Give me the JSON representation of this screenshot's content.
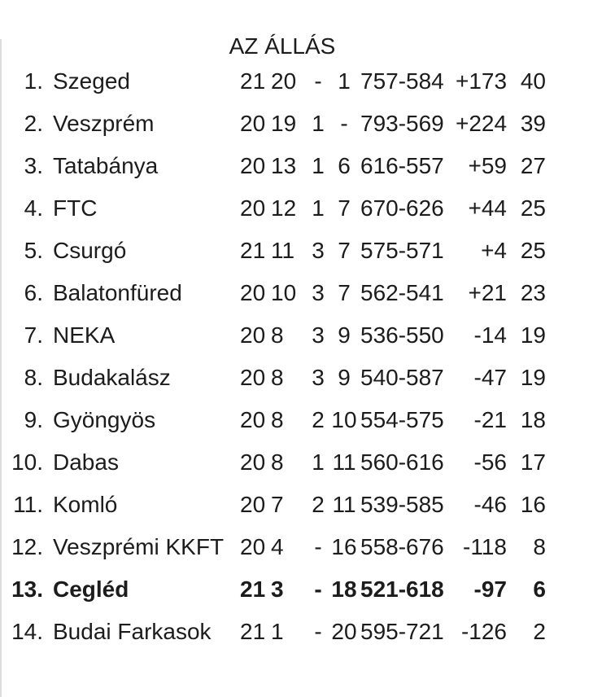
{
  "title": "AZ ÁLLÁS",
  "colors": {
    "text": "#1c1c1c",
    "background": "#ffffff",
    "left_border_line": "#dcdcdc"
  },
  "standings": {
    "columns": [
      "rank",
      "team",
      "played",
      "wins",
      "draws",
      "losses",
      "goals",
      "diff",
      "points"
    ],
    "rows": [
      {
        "rank": "1.",
        "team": "Szeged",
        "played": "21",
        "wins": "20",
        "draws": "-",
        "losses": "1",
        "goals": "757-584",
        "diff": "+173",
        "points": "40",
        "bold": false
      },
      {
        "rank": "2.",
        "team": "Veszprém",
        "played": "20",
        "wins": "19",
        "draws": "1",
        "losses": "-",
        "goals": "793-569",
        "diff": "+224",
        "points": "39",
        "bold": false
      },
      {
        "rank": "3.",
        "team": "Tatabánya",
        "played": "20",
        "wins": "13",
        "draws": "1",
        "losses": "6",
        "goals": "616-557",
        "diff": "+59",
        "points": "27",
        "bold": false
      },
      {
        "rank": "4.",
        "team": "FTC",
        "played": "20",
        "wins": "12",
        "draws": "1",
        "losses": "7",
        "goals": "670-626",
        "diff": "+44",
        "points": "25",
        "bold": false
      },
      {
        "rank": "5.",
        "team": "Csurgó",
        "played": "21",
        "wins": "11",
        "draws": "3",
        "losses": "7",
        "goals": "575-571",
        "diff": "+4",
        "points": "25",
        "bold": false
      },
      {
        "rank": "6.",
        "team": "Balatonfüred",
        "played": "20",
        "wins": "10",
        "draws": "3",
        "losses": "7",
        "goals": "562-541",
        "diff": "+21",
        "points": "23",
        "bold": false
      },
      {
        "rank": "7.",
        "team": "NEKA",
        "played": "20",
        "wins": "8",
        "draws": "3",
        "losses": "9",
        "goals": "536-550",
        "diff": "-14",
        "points": "19",
        "bold": false
      },
      {
        "rank": "8.",
        "team": "Budakalász",
        "played": "20",
        "wins": "8",
        "draws": "3",
        "losses": "9",
        "goals": "540-587",
        "diff": "-47",
        "points": "19",
        "bold": false
      },
      {
        "rank": "9.",
        "team": "Gyöngyös",
        "played": "20",
        "wins": "8",
        "draws": "2",
        "losses": "10",
        "goals": "554-575",
        "diff": "-21",
        "points": "18",
        "bold": false
      },
      {
        "rank": "10.",
        "team": "Dabas",
        "played": "20",
        "wins": "8",
        "draws": "1",
        "losses": "11",
        "goals": "560-616",
        "diff": "-56",
        "points": "17",
        "bold": false
      },
      {
        "rank": "11.",
        "team": "Komló",
        "played": "20",
        "wins": "7",
        "draws": "2",
        "losses": "11",
        "goals": "539-585",
        "diff": "-46",
        "points": "16",
        "bold": false
      },
      {
        "rank": "12.",
        "team": "Veszprémi KKFT",
        "played": "20",
        "wins": "4",
        "draws": "-",
        "losses": "16",
        "goals": "558-676",
        "diff": "-118",
        "points": "8",
        "bold": false
      },
      {
        "rank": "13.",
        "team": "Cegléd",
        "played": "21",
        "wins": "3",
        "draws": "-",
        "losses": "18",
        "goals": "521-618",
        "diff": "-97",
        "points": "6",
        "bold": true
      },
      {
        "rank": "14.",
        "team": "Budai Farkasok",
        "played": "21",
        "wins": "1",
        "draws": "-",
        "losses": "20",
        "goals": "595-721",
        "diff": "-126",
        "points": "2",
        "bold": false
      }
    ]
  }
}
